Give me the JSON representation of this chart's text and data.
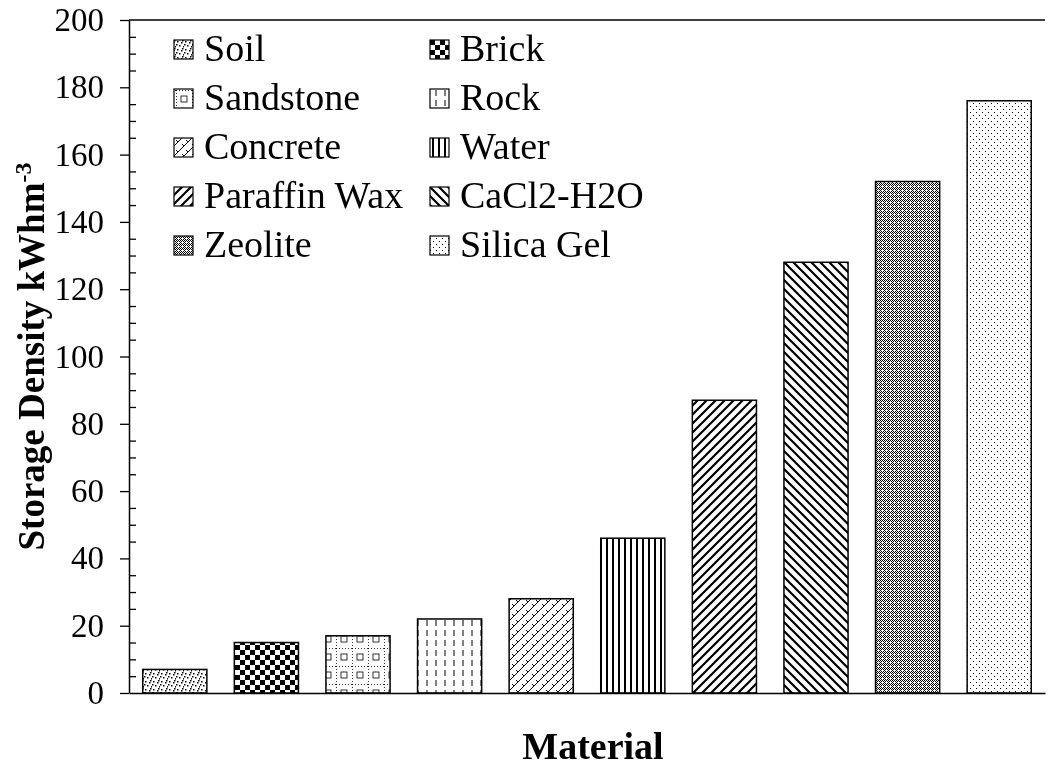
{
  "chart_data": {
    "type": "bar",
    "xlabel": "Material",
    "ylabel": "Storage Density kWhm$^{-3}$",
    "categories": [
      null,
      null,
      null,
      null,
      null,
      null,
      null,
      null,
      null,
      null
    ],
    "series": [
      {
        "name": "Soil",
        "color": "#000000",
        "values": [
          7,
          null,
          null,
          null,
          null,
          null,
          null,
          null,
          null,
          null
        ]
      },
      {
        "name": "Brick",
        "color": "#000000",
        "values": [
          null,
          15,
          null,
          null,
          null,
          null,
          null,
          null,
          null,
          null
        ]
      },
      {
        "name": "Sandstone",
        "color": "#000000",
        "values": [
          null,
          null,
          17,
          null,
          null,
          null,
          null,
          null,
          null,
          null
        ]
      },
      {
        "name": "Rock",
        "color": "#000000",
        "values": [
          null,
          null,
          null,
          22,
          null,
          null,
          null,
          null,
          null,
          null
        ]
      },
      {
        "name": "Concrete",
        "color": "#000000",
        "values": [
          null,
          null,
          null,
          null,
          28,
          null,
          null,
          null,
          null,
          null
        ]
      },
      {
        "name": "Water",
        "color": "#000000",
        "values": [
          null,
          null,
          null,
          null,
          null,
          46,
          null,
          null,
          null,
          null
        ]
      },
      {
        "name": "Paraffin Wax",
        "color": "#000000",
        "values": [
          null,
          null,
          null,
          null,
          null,
          null,
          87,
          null,
          null,
          null
        ]
      },
      {
        "name": "CaCl2-H2O",
        "color": "#000000",
        "values": [
          null,
          null,
          null,
          null,
          null,
          null,
          null,
          128,
          null,
          null
        ]
      },
      {
        "name": "Zeolite",
        "color": "#000000",
        "values": [
          null,
          null,
          null,
          null,
          null,
          null,
          null,
          null,
          152,
          null
        ]
      },
      {
        "name": "Silica Gel",
        "color": "#000000",
        "values": [
          null,
          null,
          null,
          null,
          null,
          null,
          null,
          null,
          null,
          176
        ]
      }
    ],
    "ylim": [
      0,
      200
    ],
    "yticks": [
      0,
      {
        "value": 5,
        "label": null
      },
      {
        "value": 10,
        "label": null
      },
      {
        "value": 15,
        "label": null
      },
      20,
      {
        "value": 25,
        "label": null
      },
      {
        "value": 30,
        "label": null
      },
      {
        "value": 35,
        "label": null
      },
      40,
      {
        "value": 45,
        "label": null
      },
      {
        "value": 50,
        "label": null
      },
      {
        "value": 55,
        "label": null
      },
      60,
      {
        "value": 65,
        "label": null
      },
      {
        "value": 70,
        "label": null
      },
      {
        "value": 75,
        "label": null
      },
      80,
      {
        "value": 85,
        "label": null
      },
      {
        "value": 90,
        "label": null
      },
      {
        "value": 95,
        "label": null
      },
      100,
      {
        "value": 105,
        "label": null
      },
      {
        "value": 110,
        "label": null
      },
      {
        "value": 115,
        "label": null
      },
      120,
      {
        "value": 125,
        "label": null
      },
      {
        "value": 130,
        "label": null
      },
      {
        "value": 135,
        "label": null
      },
      140,
      {
        "value": 145,
        "label": null
      },
      {
        "value": 150,
        "label": null
      },
      {
        "value": 155,
        "label": null
      },
      160,
      {
        "value": 165,
        "label": null
      },
      {
        "value": 170,
        "label": null
      },
      {
        "value": 175,
        "label": null
      },
      180,
      {
        "value": 185,
        "label": null
      },
      {
        "value": 190,
        "label": null
      },
      {
        "value": 195,
        "label": null
      },
      200
    ],
    "legend": "top left"
  }
}
